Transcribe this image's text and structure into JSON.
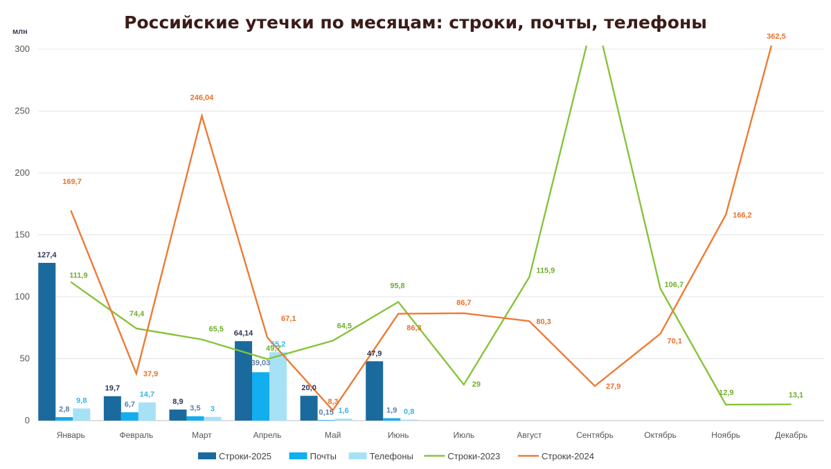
{
  "chart_data": {
    "type": "bar",
    "title": "Российские утечки по месяцам: строки, почты, телефоны",
    "unit_label": "млн",
    "ylim": [
      0,
      300
    ],
    "yticks": [
      0,
      50,
      100,
      150,
      200,
      250,
      300
    ],
    "grid": true,
    "legend_position": "bottom",
    "categories": [
      "Январь",
      "Февраль",
      "Март",
      "Апрель",
      "Май",
      "Июнь",
      "Июль",
      "Август",
      "Сентябрь",
      "Октябрь",
      "Ноябрь",
      "Декабрь"
    ],
    "series": [
      {
        "name": "Строки-2025",
        "kind": "bar",
        "color": "#1a6a9e",
        "values": [
          127.4,
          19.7,
          8.9,
          64.14,
          20.0,
          47.9,
          null,
          null,
          null,
          null,
          null,
          null
        ],
        "labels": [
          "127,4",
          "19,7",
          "8,9",
          "64,14",
          "20,0",
          "47,9"
        ],
        "label_color": "#2f3450"
      },
      {
        "name": "Почты",
        "kind": "bar",
        "color": "#11aef0",
        "values": [
          2.8,
          6.7,
          3.5,
          39.03,
          0.15,
          1.9,
          null,
          null,
          null,
          null,
          null,
          null
        ],
        "labels": [
          "2,8",
          "6,7",
          "3,5",
          "39,03",
          "0,15",
          "1,9"
        ],
        "label_color": "#5a7fa6"
      },
      {
        "name": "Телефоны",
        "kind": "bar",
        "color": "#a7e1f6",
        "values": [
          9.8,
          14.7,
          3.0,
          55.2,
          1.6,
          0.8,
          null,
          null,
          null,
          null,
          null,
          null
        ],
        "labels": [
          "9,8",
          "14,7",
          "3",
          "55,2",
          "1,6",
          "0,8"
        ],
        "label_color": "#37b5ea"
      },
      {
        "name": "Строки-2023",
        "kind": "line",
        "color": "#86c33a",
        "values": [
          111.9,
          74.4,
          65.5,
          49.7,
          64.5,
          95.8,
          29,
          115.9,
          330,
          106.7,
          12.9,
          13.1
        ],
        "labels": [
          "111,9",
          "74,4",
          "65,5",
          "49,7",
          "64,5",
          "95,8",
          "29",
          "115,9",
          "",
          "106,7",
          "12,9",
          "13,1"
        ],
        "label_color": "#6fae2c"
      },
      {
        "name": "Строки-2024",
        "kind": "line",
        "color": "#ee7a33",
        "values": [
          169.7,
          37.9,
          246.04,
          67.1,
          8.3,
          86.3,
          86.7,
          80.3,
          27.9,
          70.1,
          166.2,
          362.5
        ],
        "labels": [
          "169,7",
          "37,9",
          "246,04",
          "67,1",
          "8,3",
          "86,3",
          "86,7",
          "80,3",
          "27,9",
          "70,1",
          "166,2",
          "362,5"
        ],
        "label_color": "#e8702a"
      }
    ]
  }
}
